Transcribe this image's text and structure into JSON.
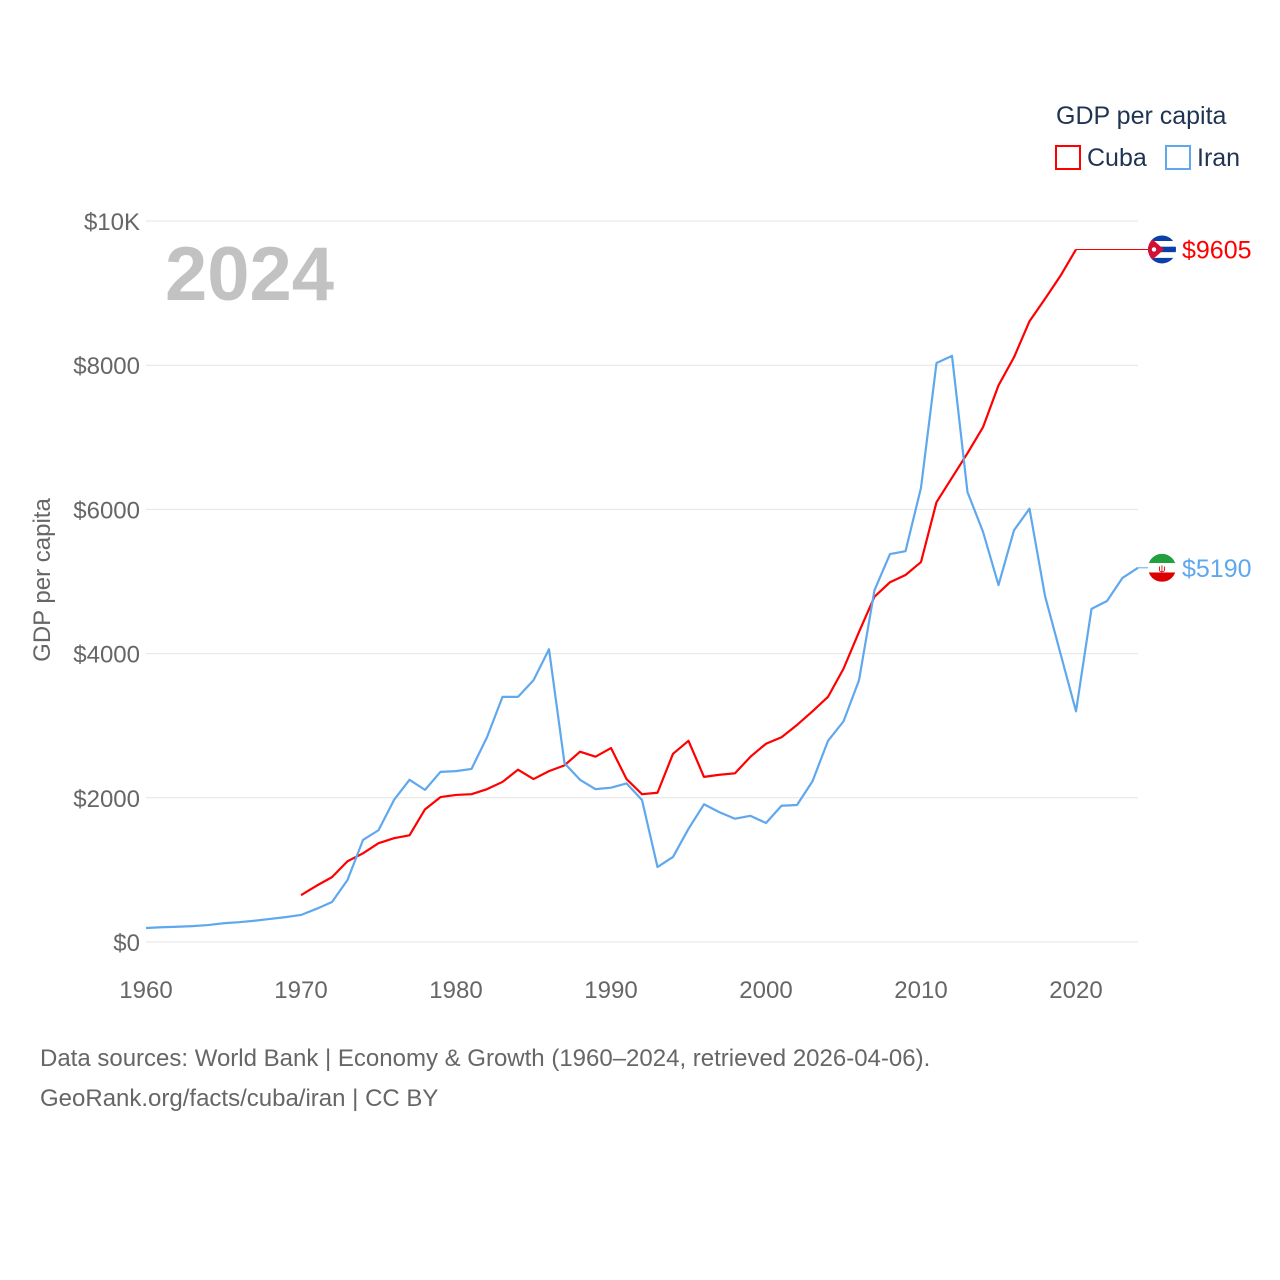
{
  "chart_data": {
    "type": "line",
    "year_label": "2024",
    "ylabel": "GDP per capita",
    "xlabel": "",
    "xlim": [
      1960,
      2024
    ],
    "ylim": [
      0,
      10000
    ],
    "x_ticks": [
      "1960",
      "1970",
      "1980",
      "1990",
      "2000",
      "2010",
      "2020"
    ],
    "y_ticks": [
      {
        "value": 0,
        "label": "$0"
      },
      {
        "value": 2000,
        "label": "$2000"
      },
      {
        "value": 4000,
        "label": "$4000"
      },
      {
        "value": 6000,
        "label": "$6000"
      },
      {
        "value": 8000,
        "label": "$8000"
      },
      {
        "value": 10000,
        "label": "$10K"
      }
    ],
    "grid": true,
    "legend": {
      "title": "GDP per capita",
      "position": "top-right"
    },
    "series": [
      {
        "name": "Cuba",
        "color": "#ff0000",
        "end_label": "$9605",
        "start_year": 1970,
        "values": [
          650,
          780,
          900,
          1120,
          1230,
          1370,
          1440,
          1480,
          1840,
          2010,
          2040,
          2050,
          2120,
          2220,
          2390,
          2260,
          2370,
          2450,
          2640,
          2570,
          2690,
          2260,
          2050,
          2070,
          2610,
          2790,
          2290,
          2320,
          2340,
          2570,
          2750,
          2840,
          3010,
          3200,
          3400,
          3790,
          4300,
          4790,
          4990,
          5090,
          5270,
          6100,
          6440,
          6780,
          7140,
          7720,
          8110,
          8610,
          8920,
          9240,
          9605
        ]
      },
      {
        "name": "Iran",
        "color": "#5fa8ee",
        "end_label": "$5190",
        "start_year": 1960,
        "values": [
          194,
          205,
          212,
          220,
          235,
          260,
          275,
          295,
          320,
          345,
          375,
          460,
          555,
          860,
          1415,
          1550,
          1970,
          2250,
          2110,
          2360,
          2370,
          2400,
          2840,
          3400,
          3400,
          3630,
          4060,
          2480,
          2250,
          2120,
          2140,
          2200,
          1970,
          1040,
          1180,
          1570,
          1910,
          1800,
          1710,
          1750,
          1650,
          1890,
          1900,
          2230,
          2790,
          3060,
          3630,
          4880,
          5380,
          5420,
          6300,
          8030,
          8130,
          6240,
          5690,
          4950,
          5710,
          6010,
          4800,
          4000,
          3200,
          4620,
          4730,
          5050,
          5190
        ]
      }
    ]
  },
  "footer": {
    "line1": "Data sources: World Bank | Economy & Growth (1960–2024, retrieved 2026-04-06).",
    "line2": "GeoRank.org/facts/cuba/iran | CC BY"
  }
}
